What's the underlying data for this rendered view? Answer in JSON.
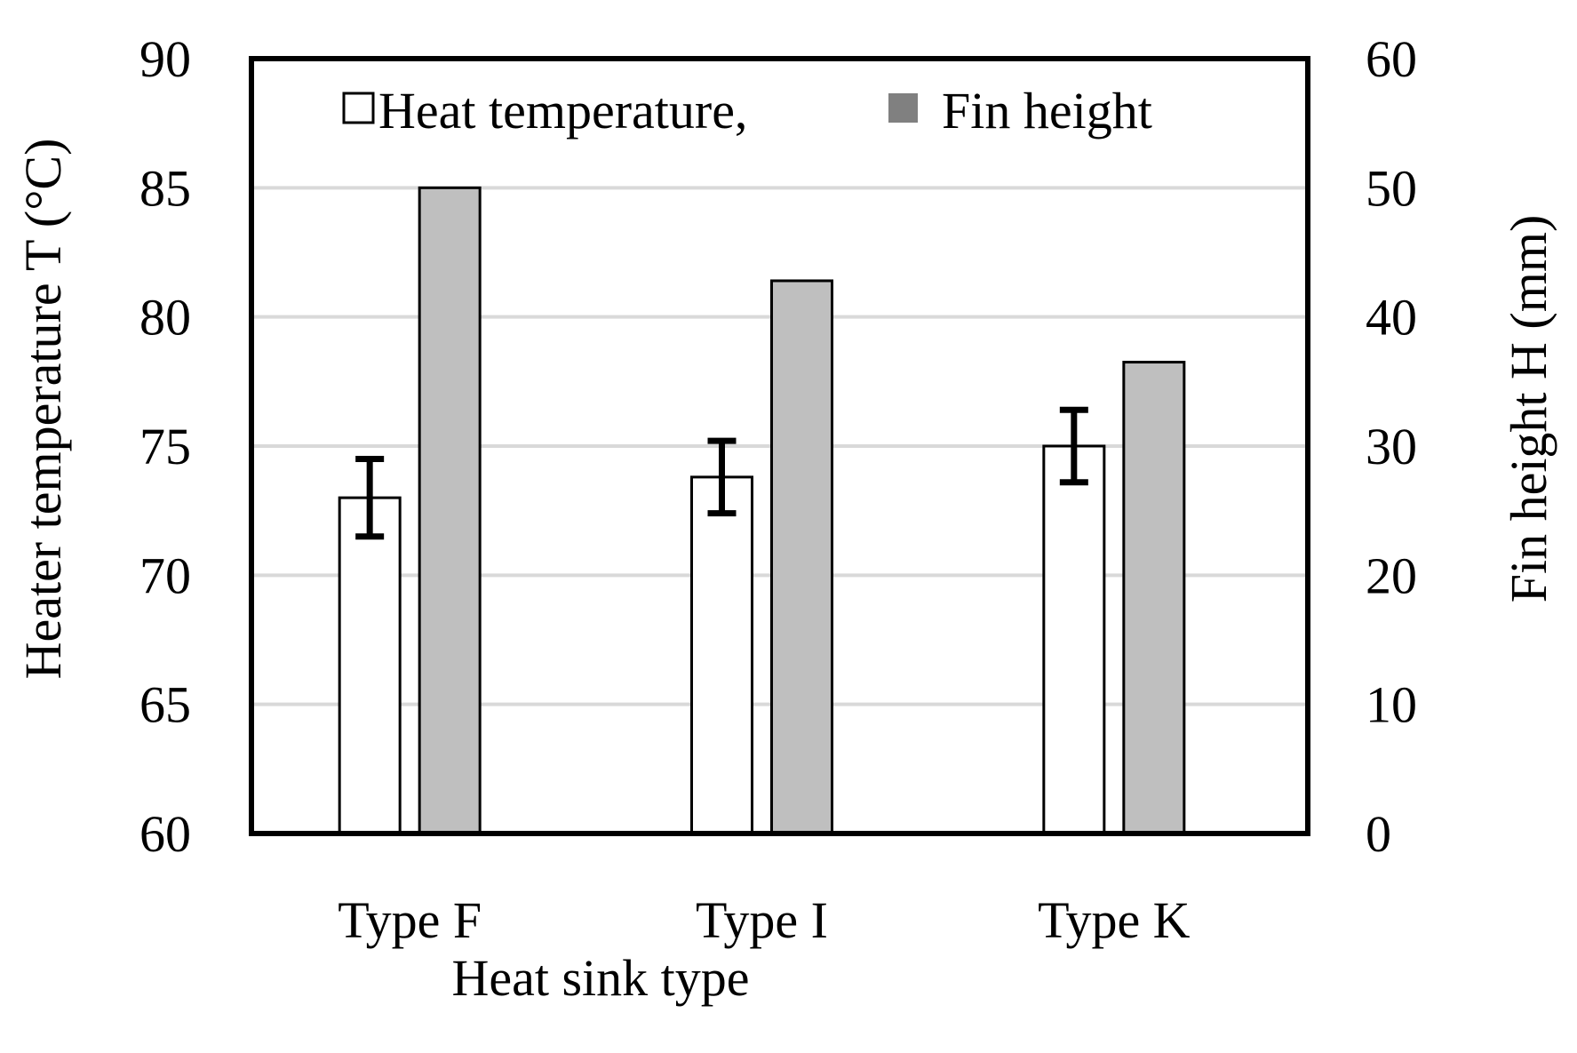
{
  "chart_data": {
    "type": "bar",
    "categories": [
      "Type F",
      "Type I",
      "Type K"
    ],
    "xlabel": "Heat sink type",
    "ylabel": "Heater temperature T (°C)",
    "y2label": "Fin height H (mm)",
    "ylim": [
      60,
      90
    ],
    "y2lim": [
      0,
      60
    ],
    "yticks": [
      "60",
      "65",
      "70",
      "75",
      "80",
      "85",
      "90"
    ],
    "y2ticks": [
      "0",
      "10",
      "20",
      "30",
      "40",
      "50",
      "60"
    ],
    "grid": true,
    "legend": "top-center",
    "series": [
      {
        "name": "Heat temperature,",
        "axis": "left",
        "color": "#ffffff",
        "values": [
          73.0,
          73.8,
          75.0
        ],
        "error": [
          1.5,
          1.4,
          1.4
        ]
      },
      {
        "name": "Fin height",
        "axis": "right",
        "color": "#bfbfbf",
        "values": [
          50,
          42.8,
          36.5
        ]
      }
    ],
    "legend_colors": [
      "#ffffff",
      "#808080"
    ]
  }
}
